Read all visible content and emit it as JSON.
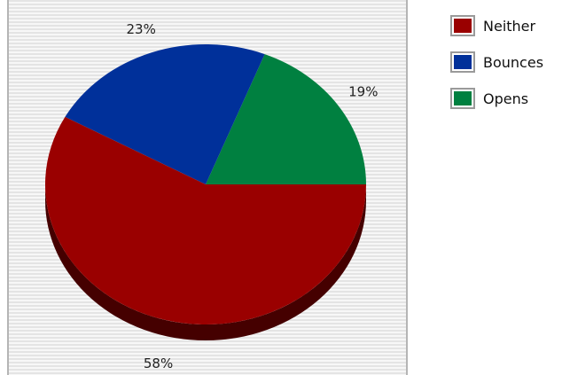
{
  "chart_data": {
    "type": "pie",
    "title": "",
    "slices": [
      {
        "name": "Neither",
        "value": 58,
        "label": "58%",
        "color": "#9a0000"
      },
      {
        "name": "Bounces",
        "value": 23,
        "label": "23%",
        "color": "#00309a"
      },
      {
        "name": "Opens",
        "value": 19,
        "label": "19%",
        "color": "#008040"
      }
    ],
    "legend": "right",
    "start_angle": "3 o'clock, counter-clockwise",
    "style": "3d",
    "background": "light gray with horizontal stripes"
  }
}
